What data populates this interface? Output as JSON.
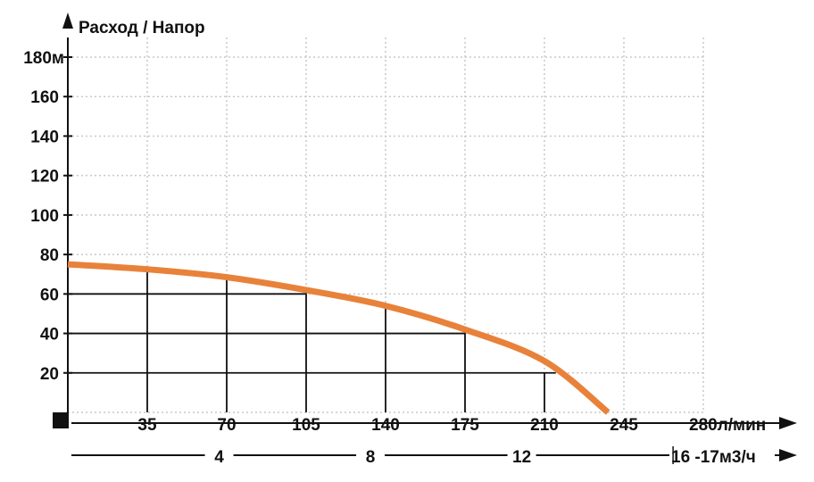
{
  "chart_data": {
    "type": "line",
    "title": "Расход / Напор",
    "y_unit_label": "180м",
    "y_ticks": [
      "20",
      "40",
      "60",
      "80",
      "100",
      "120",
      "140",
      "160"
    ],
    "ylim": [
      0,
      180
    ],
    "x_ticks_flow": [
      "35",
      "70",
      "105",
      "140",
      "175",
      "210",
      "245"
    ],
    "x_last_tick_flow": "280л/мин",
    "xlim": [
      0,
      280
    ],
    "x_ticks_m3h": [
      "4",
      "8",
      "12"
    ],
    "x_last_tick_m3h": "16 -17м3/ч",
    "series": [
      {
        "name": "Напор",
        "color": "#e8823a",
        "x": [
          0,
          35,
          70,
          105,
          140,
          175,
          210,
          238
        ],
        "y": [
          75,
          72.5,
          68.5,
          62,
          54,
          42,
          26,
          0
        ]
      }
    ],
    "reference_points": [
      {
        "x": 35,
        "y": 72
      },
      {
        "x": 70,
        "y": 68
      },
      {
        "x": 105,
        "y": 62
      },
      {
        "x": 140,
        "y": 54
      },
      {
        "x": 175,
        "y": 42
      },
      {
        "x": 210,
        "y": 20
      }
    ],
    "h_reference_lines": [
      {
        "y": 60,
        "x_end": 105
      },
      {
        "y": 40,
        "x_end": 175
      },
      {
        "y": 20,
        "x_end": 215
      }
    ],
    "colors": {
      "curve": "#e8823a",
      "grid_dotted": "#c8c8c8",
      "lines": "#111111"
    }
  }
}
